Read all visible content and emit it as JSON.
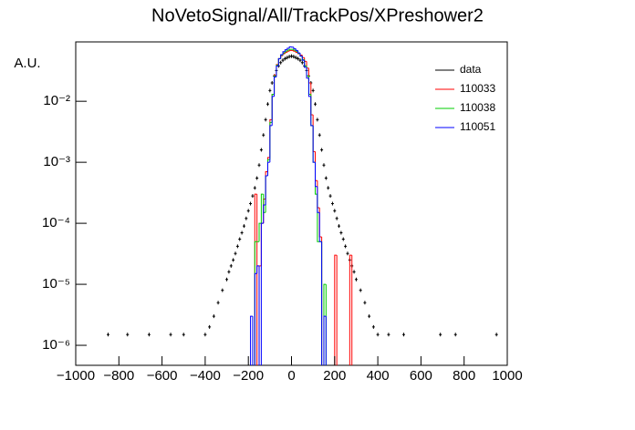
{
  "chart_data": {
    "type": "histogram",
    "title": "NoVetoSignal/All/TrackPos/XPreshower2",
    "y_label": "A.U.",
    "log_y": true,
    "xlim": [
      -1000,
      1000
    ],
    "ylim": [
      4.7e-07,
      0.094
    ],
    "xticks": [
      {
        "value": -1000,
        "label": "−1000"
      },
      {
        "value": -800,
        "label": "−800"
      },
      {
        "value": -600,
        "label": "−600"
      },
      {
        "value": -400,
        "label": "−400"
      },
      {
        "value": -200,
        "label": "−200"
      },
      0,
      200,
      400,
      600,
      800,
      1000
    ],
    "yticks": [
      {
        "value": 1e-06,
        "label": "10⁻⁶"
      },
      {
        "value": 1e-05,
        "label": "10⁻⁵"
      },
      {
        "value": 0.0001,
        "label": "10⁻⁴"
      },
      {
        "value": 0.001,
        "label": "10⁻³"
      },
      {
        "value": 0.01,
        "label": "10⁻²"
      }
    ],
    "legend": "top-right",
    "bins": [
      -200,
      -190,
      -180,
      -170,
      -160,
      -150,
      -140,
      -130,
      -120,
      -110,
      -100,
      -90,
      -80,
      -70,
      -60,
      -50,
      -40,
      -30,
      -20,
      -10,
      0,
      10,
      20,
      30,
      40,
      50,
      60,
      70,
      80,
      90,
      100,
      110,
      120,
      130,
      140,
      150,
      160,
      170,
      180,
      190,
      200,
      210,
      220,
      230,
      240,
      250,
      260,
      270,
      280,
      290,
      300
    ],
    "series": [
      {
        "name": "data",
        "color": "#000000",
        "style": "points",
        "x": [
          -850,
          -760,
          -660,
          -560,
          -500,
          -400,
          -380,
          -360,
          -340,
          -320,
          -300,
          -290,
          -280,
          -270,
          -260,
          -250,
          -240,
          -230,
          -220,
          -210,
          -200,
          -190,
          -180,
          -170,
          -160,
          -150,
          -140,
          -130,
          -120,
          -110,
          -100,
          -90,
          -80,
          -70,
          -60,
          -50,
          -40,
          -30,
          -20,
          -10,
          0,
          10,
          20,
          30,
          40,
          50,
          60,
          70,
          80,
          90,
          100,
          110,
          120,
          130,
          140,
          150,
          160,
          170,
          180,
          190,
          200,
          210,
          220,
          230,
          240,
          250,
          260,
          270,
          280,
          290,
          300,
          320,
          340,
          360,
          380,
          400,
          450,
          520,
          690,
          760,
          950
        ],
        "values": [
          1.5e-06,
          1.5e-06,
          1.5e-06,
          1.5e-06,
          1.5e-06,
          1.5e-06,
          2e-06,
          3e-06,
          5e-06,
          8e-06,
          1.2e-05,
          1.6e-05,
          2e-05,
          2.5e-05,
          3.2e-05,
          4.2e-05,
          5.5e-05,
          7e-05,
          9e-05,
          0.00012,
          0.00016,
          0.00021,
          0.00028,
          0.00038,
          0.00055,
          0.0009,
          0.0016,
          0.0028,
          0.005,
          0.009,
          0.015,
          0.02,
          0.026,
          0.032,
          0.038,
          0.043,
          0.047,
          0.05,
          0.052,
          0.054,
          0.055,
          0.054,
          0.052,
          0.05,
          0.047,
          0.043,
          0.038,
          0.032,
          0.026,
          0.02,
          0.015,
          0.009,
          0.005,
          0.0028,
          0.0016,
          0.0009,
          0.00055,
          0.00038,
          0.00028,
          0.00021,
          0.00016,
          0.00012,
          9e-05,
          7e-05,
          5.5e-05,
          4.2e-05,
          3.2e-05,
          2.5e-05,
          2e-05,
          1.6e-05,
          1.2e-05,
          8e-06,
          5e-06,
          3e-06,
          2e-06,
          1.5e-06,
          1.5e-06,
          1.5e-06,
          1.5e-06,
          1.5e-06,
          1.5e-06
        ]
      },
      {
        "name": "110033",
        "color": "#ff0000",
        "values": [
          0,
          0,
          0,
          0.0003,
          0,
          2e-05,
          0.0001,
          0.00025,
          0.0007,
          0.0012,
          0.005,
          0.013,
          0.027,
          0.04,
          0.05,
          0.056,
          0.06,
          0.063,
          0.066,
          0.068,
          0.068,
          0.066,
          0.063,
          0.06,
          0.057,
          0.052,
          0.045,
          0.035,
          0.02,
          0.006,
          0.0015,
          0.0005,
          0.00018,
          6e-05,
          0,
          0,
          0,
          0,
          0,
          0,
          3e-05,
          0,
          0,
          0,
          0,
          0,
          0,
          3e-05,
          0,
          0
        ]
      },
      {
        "name": "110038",
        "color": "#00cc00",
        "values": [
          0,
          0,
          0,
          5e-05,
          5e-05,
          0.0001,
          0.0003,
          0.00015,
          0.0006,
          0.0011,
          0.0045,
          0.013,
          0.026,
          0.039,
          0.05,
          0.057,
          0.062,
          0.066,
          0.069,
          0.071,
          0.071,
          0.069,
          0.066,
          0.061,
          0.055,
          0.048,
          0.038,
          0.026,
          0.013,
          0.004,
          0.001,
          0.0003,
          5e-05,
          5e-05,
          0,
          1e-05,
          0,
          0,
          0,
          0,
          0,
          0,
          0,
          0,
          0,
          0,
          0,
          0,
          0,
          0
        ]
      },
      {
        "name": "110051",
        "color": "#0000ff",
        "values": [
          0,
          3e-06,
          0,
          1.5e-05,
          2e-05,
          0,
          0.0001,
          0.0002,
          0.0006,
          0.001,
          0.004,
          0.012,
          0.025,
          0.038,
          0.05,
          0.058,
          0.065,
          0.07,
          0.074,
          0.078,
          0.077,
          0.073,
          0.068,
          0.062,
          0.055,
          0.047,
          0.036,
          0.024,
          0.012,
          0.004,
          0.001,
          0.0004,
          0.00015,
          5e-05,
          0,
          3e-06,
          0,
          0,
          0,
          0,
          0,
          0,
          0,
          0,
          0,
          0,
          0,
          0,
          0,
          0
        ]
      }
    ]
  }
}
